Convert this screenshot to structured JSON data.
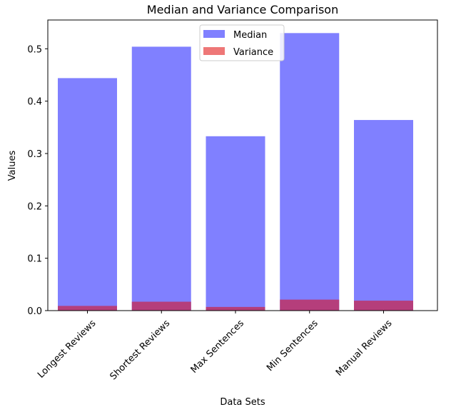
{
  "chart_data": {
    "type": "bar",
    "title": "Median and Variance Comparison",
    "xlabel": "Data Sets",
    "ylabel": "Values",
    "categories": [
      "Longest Reviews",
      "Shortest Reviews",
      "Max Sentences",
      "Min Sentences",
      "Manual Reviews"
    ],
    "ylim": [
      0,
      0.555
    ],
    "yticks": [
      "0.0",
      "0.1",
      "0.2",
      "0.3",
      "0.4",
      "0.5"
    ],
    "series": [
      {
        "name": "Median",
        "color": "#8080ff",
        "values": [
          0.444,
          0.504,
          0.333,
          0.53,
          0.364
        ]
      },
      {
        "name": "Variance",
        "color": "#ee7777",
        "values": [
          0.009,
          0.017,
          0.007,
          0.021,
          0.019
        ]
      }
    ],
    "overlap_color": "#b53e7b",
    "legend_position": "upper center",
    "grid": false
  }
}
